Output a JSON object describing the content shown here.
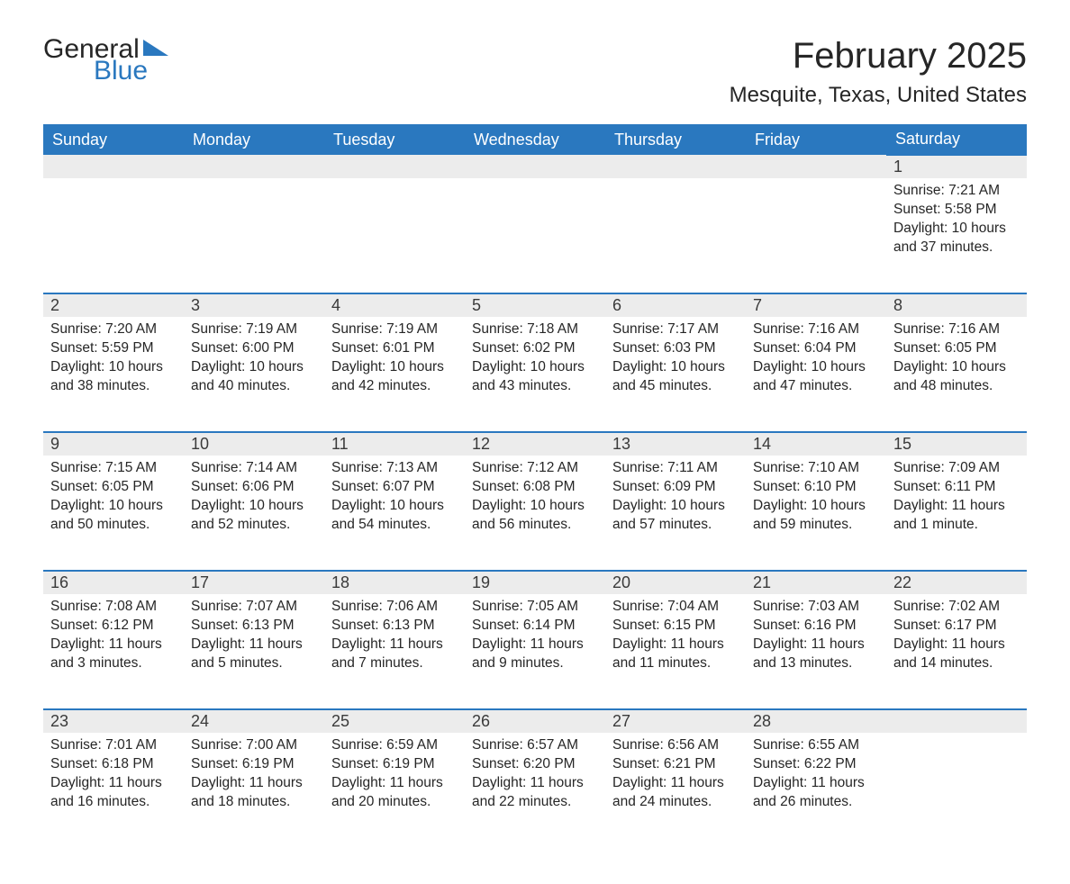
{
  "brand": {
    "word1": "General",
    "word2": "Blue",
    "accent": "#2a78bf"
  },
  "title": "February 2025",
  "location": "Mesquite, Texas, United States",
  "colors": {
    "header_bg": "#2a78bf",
    "header_text": "#ffffff",
    "daynum_bg": "#ececec",
    "row_border": "#2a78bf",
    "body_text": "#262626",
    "page_bg": "#ffffff"
  },
  "typography": {
    "title_fontsize": 40,
    "location_fontsize": 24,
    "weekday_fontsize": 18,
    "daynum_fontsize": 18,
    "cell_fontsize": 15.5
  },
  "weekdays": [
    "Sunday",
    "Monday",
    "Tuesday",
    "Wednesday",
    "Thursday",
    "Friday",
    "Saturday"
  ],
  "weeks": [
    [
      null,
      null,
      null,
      null,
      null,
      null,
      {
        "d": "1",
        "sr": "7:21 AM",
        "ss": "5:58 PM",
        "dl": "10 hours and 37 minutes."
      }
    ],
    [
      {
        "d": "2",
        "sr": "7:20 AM",
        "ss": "5:59 PM",
        "dl": "10 hours and 38 minutes."
      },
      {
        "d": "3",
        "sr": "7:19 AM",
        "ss": "6:00 PM",
        "dl": "10 hours and 40 minutes."
      },
      {
        "d": "4",
        "sr": "7:19 AM",
        "ss": "6:01 PM",
        "dl": "10 hours and 42 minutes."
      },
      {
        "d": "5",
        "sr": "7:18 AM",
        "ss": "6:02 PM",
        "dl": "10 hours and 43 minutes."
      },
      {
        "d": "6",
        "sr": "7:17 AM",
        "ss": "6:03 PM",
        "dl": "10 hours and 45 minutes."
      },
      {
        "d": "7",
        "sr": "7:16 AM",
        "ss": "6:04 PM",
        "dl": "10 hours and 47 minutes."
      },
      {
        "d": "8",
        "sr": "7:16 AM",
        "ss": "6:05 PM",
        "dl": "10 hours and 48 minutes."
      }
    ],
    [
      {
        "d": "9",
        "sr": "7:15 AM",
        "ss": "6:05 PM",
        "dl": "10 hours and 50 minutes."
      },
      {
        "d": "10",
        "sr": "7:14 AM",
        "ss": "6:06 PM",
        "dl": "10 hours and 52 minutes."
      },
      {
        "d": "11",
        "sr": "7:13 AM",
        "ss": "6:07 PM",
        "dl": "10 hours and 54 minutes."
      },
      {
        "d": "12",
        "sr": "7:12 AM",
        "ss": "6:08 PM",
        "dl": "10 hours and 56 minutes."
      },
      {
        "d": "13",
        "sr": "7:11 AM",
        "ss": "6:09 PM",
        "dl": "10 hours and 57 minutes."
      },
      {
        "d": "14",
        "sr": "7:10 AM",
        "ss": "6:10 PM",
        "dl": "10 hours and 59 minutes."
      },
      {
        "d": "15",
        "sr": "7:09 AM",
        "ss": "6:11 PM",
        "dl": "11 hours and 1 minute."
      }
    ],
    [
      {
        "d": "16",
        "sr": "7:08 AM",
        "ss": "6:12 PM",
        "dl": "11 hours and 3 minutes."
      },
      {
        "d": "17",
        "sr": "7:07 AM",
        "ss": "6:13 PM",
        "dl": "11 hours and 5 minutes."
      },
      {
        "d": "18",
        "sr": "7:06 AM",
        "ss": "6:13 PM",
        "dl": "11 hours and 7 minutes."
      },
      {
        "d": "19",
        "sr": "7:05 AM",
        "ss": "6:14 PM",
        "dl": "11 hours and 9 minutes."
      },
      {
        "d": "20",
        "sr": "7:04 AM",
        "ss": "6:15 PM",
        "dl": "11 hours and 11 minutes."
      },
      {
        "d": "21",
        "sr": "7:03 AM",
        "ss": "6:16 PM",
        "dl": "11 hours and 13 minutes."
      },
      {
        "d": "22",
        "sr": "7:02 AM",
        "ss": "6:17 PM",
        "dl": "11 hours and 14 minutes."
      }
    ],
    [
      {
        "d": "23",
        "sr": "7:01 AM",
        "ss": "6:18 PM",
        "dl": "11 hours and 16 minutes."
      },
      {
        "d": "24",
        "sr": "7:00 AM",
        "ss": "6:19 PM",
        "dl": "11 hours and 18 minutes."
      },
      {
        "d": "25",
        "sr": "6:59 AM",
        "ss": "6:19 PM",
        "dl": "11 hours and 20 minutes."
      },
      {
        "d": "26",
        "sr": "6:57 AM",
        "ss": "6:20 PM",
        "dl": "11 hours and 22 minutes."
      },
      {
        "d": "27",
        "sr": "6:56 AM",
        "ss": "6:21 PM",
        "dl": "11 hours and 24 minutes."
      },
      {
        "d": "28",
        "sr": "6:55 AM",
        "ss": "6:22 PM",
        "dl": "11 hours and 26 minutes."
      },
      null
    ]
  ],
  "labels": {
    "sunrise": "Sunrise: ",
    "sunset": "Sunset: ",
    "daylight": "Daylight: "
  }
}
